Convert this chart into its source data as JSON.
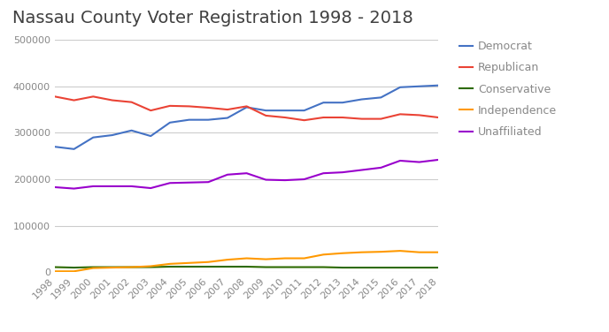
{
  "title": "Nassau County Voter Registration 1998 - 2018",
  "years": [
    1998,
    1999,
    2000,
    2001,
    2002,
    2003,
    2004,
    2005,
    2006,
    2007,
    2008,
    2009,
    2010,
    2011,
    2012,
    2013,
    2014,
    2015,
    2016,
    2017,
    2018
  ],
  "democrat": [
    270000,
    265000,
    290000,
    295000,
    305000,
    293000,
    322000,
    328000,
    328000,
    332000,
    355000,
    348000,
    348000,
    348000,
    365000,
    365000,
    372000,
    376000,
    398000,
    400000,
    402000
  ],
  "republican": [
    378000,
    370000,
    378000,
    370000,
    366000,
    348000,
    358000,
    357000,
    354000,
    350000,
    357000,
    337000,
    333000,
    327000,
    333000,
    333000,
    330000,
    330000,
    340000,
    338000,
    333000
  ],
  "conservative": [
    11000,
    10000,
    11000,
    11000,
    11000,
    11000,
    12000,
    12000,
    12000,
    12000,
    12000,
    11000,
    11000,
    11000,
    11000,
    10000,
    10000,
    10000,
    10000,
    10000,
    10000
  ],
  "independence": [
    2000,
    2000,
    9000,
    10000,
    11000,
    13000,
    18000,
    20000,
    22000,
    27000,
    30000,
    28000,
    30000,
    30000,
    38000,
    41000,
    43000,
    44000,
    46000,
    43000,
    43000
  ],
  "unaffiliated": [
    183000,
    180000,
    185000,
    185000,
    185000,
    181000,
    192000,
    193000,
    194000,
    210000,
    213000,
    199000,
    198000,
    200000,
    213000,
    215000,
    220000,
    225000,
    240000,
    237000,
    242000
  ],
  "colors": {
    "democrat": "#4472c4",
    "republican": "#ea4335",
    "conservative": "#2d6a00",
    "independence": "#ff9900",
    "unaffiliated": "#9900cc"
  },
  "ylim": [
    0,
    500000
  ],
  "yticks": [
    0,
    100000,
    200000,
    300000,
    400000,
    500000
  ],
  "background_color": "#ffffff",
  "grid_color": "#cccccc",
  "title_color": "#404040",
  "tick_color": "#888888",
  "title_fontsize": 14,
  "tick_fontsize": 8,
  "legend_fontsize": 9,
  "linewidth": 1.5
}
